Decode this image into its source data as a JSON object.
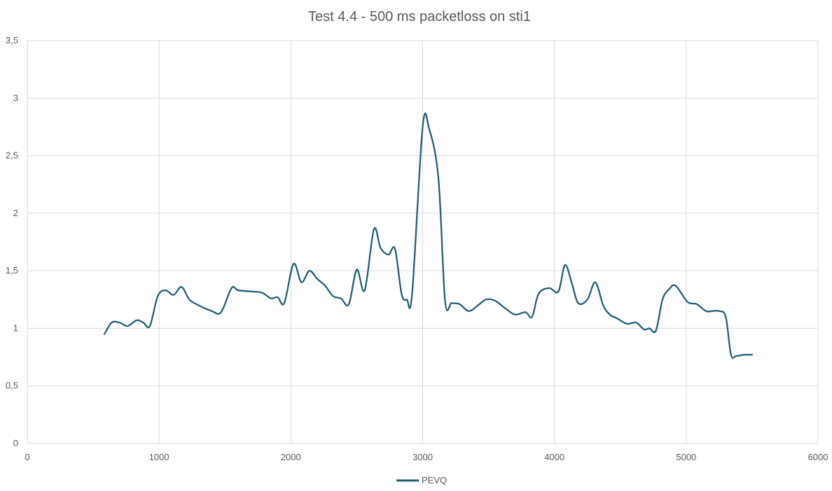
{
  "chart_data": {
    "type": "line",
    "title": "Test 4.4 - 500 ms packetloss on sti1",
    "xlabel": "",
    "ylabel": "",
    "xlim": [
      0,
      6000
    ],
    "ylim": [
      0,
      3.5
    ],
    "x_ticks": [
      0,
      1000,
      2000,
      3000,
      4000,
      5000,
      6000
    ],
    "x_tick_labels": [
      "0",
      "1000",
      "2000",
      "3000",
      "4000",
      "5000",
      "6000"
    ],
    "y_ticks": [
      0,
      0.5,
      1,
      1.5,
      2,
      2.5,
      3,
      3.5
    ],
    "y_tick_labels": [
      "0",
      "0,5",
      "1",
      "1,5",
      "2",
      "2,5",
      "3",
      "3,5"
    ],
    "grid": true,
    "legend_position": "bottom",
    "colors": {
      "series": "#1f5c73",
      "grid": "#d9d9d9",
      "text": "#595959"
    },
    "series": [
      {
        "name": "PEVQ",
        "x": [
          585,
          640,
          700,
          760,
          830,
          880,
          930,
          990,
          1050,
          1110,
          1170,
          1230,
          1300,
          1400,
          1470,
          1550,
          1600,
          1700,
          1780,
          1850,
          1900,
          1950,
          2020,
          2080,
          2140,
          2200,
          2260,
          2320,
          2380,
          2440,
          2500,
          2560,
          2630,
          2680,
          2740,
          2790,
          2840,
          2880,
          2920,
          3000,
          3050,
          3120,
          3170,
          3220,
          3280,
          3350,
          3420,
          3480,
          3550,
          3620,
          3700,
          3780,
          3830,
          3880,
          3960,
          4030,
          4080,
          4130,
          4180,
          4250,
          4310,
          4370,
          4420,
          4470,
          4550,
          4620,
          4680,
          4720,
          4770,
          4820,
          4870,
          4920,
          5010,
          5080,
          5150,
          5200,
          5250,
          5300,
          5340,
          5380,
          5440,
          5500
        ],
        "values": [
          0.95,
          1.05,
          1.05,
          1.02,
          1.07,
          1.05,
          1.02,
          1.28,
          1.33,
          1.29,
          1.36,
          1.25,
          1.2,
          1.15,
          1.14,
          1.35,
          1.33,
          1.32,
          1.31,
          1.26,
          1.27,
          1.22,
          1.56,
          1.4,
          1.5,
          1.43,
          1.37,
          1.28,
          1.26,
          1.21,
          1.51,
          1.33,
          1.86,
          1.7,
          1.64,
          1.69,
          1.3,
          1.25,
          1.3,
          2.75,
          2.73,
          2.3,
          1.24,
          1.22,
          1.21,
          1.15,
          1.2,
          1.25,
          1.24,
          1.18,
          1.12,
          1.14,
          1.1,
          1.3,
          1.35,
          1.32,
          1.55,
          1.4,
          1.22,
          1.25,
          1.4,
          1.2,
          1.12,
          1.09,
          1.04,
          1.05,
          0.99,
          1.0,
          0.98,
          1.25,
          1.34,
          1.37,
          1.23,
          1.21,
          1.15,
          1.15,
          1.15,
          1.1,
          0.77,
          0.76,
          0.77,
          0.77
        ]
      }
    ]
  }
}
